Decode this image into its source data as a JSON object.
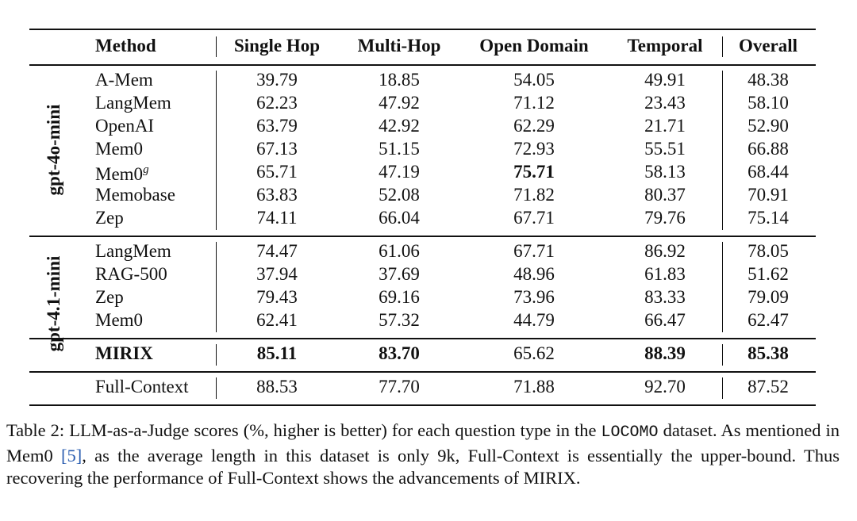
{
  "header": {
    "columns": [
      "Method",
      "Single Hop",
      "Multi-Hop",
      "Open Domain",
      "Temporal",
      "Overall"
    ]
  },
  "table": {
    "sections": [
      {
        "label": "gpt-4o-mini",
        "blocks": [
          [
            {
              "method": "A-Mem",
              "scores": [
                "39.79",
                "18.85",
                "54.05",
                "49.91",
                "48.38"
              ]
            },
            {
              "method": "LangMem",
              "scores": [
                "62.23",
                "47.92",
                "71.12",
                "23.43",
                "58.10"
              ]
            },
            {
              "method": "OpenAI",
              "scores": [
                "63.79",
                "42.92",
                "62.29",
                "21.71",
                "52.90"
              ]
            },
            {
              "method": "Mem0",
              "scores": [
                "67.13",
                "51.15",
                "72.93",
                "55.51",
                "66.88"
              ]
            },
            {
              "method": "Mem0",
              "method_sup": "g",
              "scores": [
                "65.71",
                "47.19",
                "75.71",
                "58.13",
                "68.44"
              ],
              "bold": [
                2
              ]
            },
            {
              "method": "Memobase",
              "scores": [
                "63.83",
                "52.08",
                "71.82",
                "80.37",
                "70.91"
              ]
            },
            {
              "method": "Zep",
              "scores": [
                "74.11",
                "66.04",
                "67.71",
                "79.76",
                "75.14"
              ]
            }
          ]
        ]
      },
      {
        "label": "gpt-4.1-mini",
        "blocks": [
          [
            {
              "method": "LangMem",
              "scores": [
                "74.47",
                "61.06",
                "67.71",
                "86.92",
                "78.05"
              ]
            },
            {
              "method": "RAG-500",
              "scores": [
                "37.94",
                "37.69",
                "48.96",
                "61.83",
                "51.62"
              ]
            },
            {
              "method": "Zep",
              "scores": [
                "79.43",
                "69.16",
                "73.96",
                "83.33",
                "79.09"
              ]
            },
            {
              "method": "Mem0",
              "scores": [
                "62.41",
                "57.32",
                "44.79",
                "66.47",
                "62.47"
              ]
            }
          ],
          [
            {
              "method": "MIRIX",
              "method_bold": true,
              "scores": [
                "85.11",
                "83.70",
                "65.62",
                "88.39",
                "85.38"
              ],
              "bold": [
                0,
                1,
                3,
                4
              ]
            }
          ]
        ]
      },
      {
        "blocks": [
          [
            {
              "method": "Full-Context",
              "scores": [
                "88.53",
                "77.70",
                "71.88",
                "92.70",
                "87.52"
              ]
            }
          ]
        ]
      }
    ]
  },
  "caption": {
    "parts": [
      {
        "text": "Table 2: LLM-as-a-Judge scores (%, higher is better) for each question type in the "
      },
      {
        "text": "LOCOMO",
        "style": "mono"
      },
      {
        "text": " dataset. As mentioned in Mem0 "
      },
      {
        "text": "[5]",
        "style": "ref"
      },
      {
        "text": ", as the average length in this dataset is only 9k, Full-Context is essentially the upper-bound.  Thus recovering the performance of Full-Context shows the advancements of MIRIX."
      }
    ]
  }
}
